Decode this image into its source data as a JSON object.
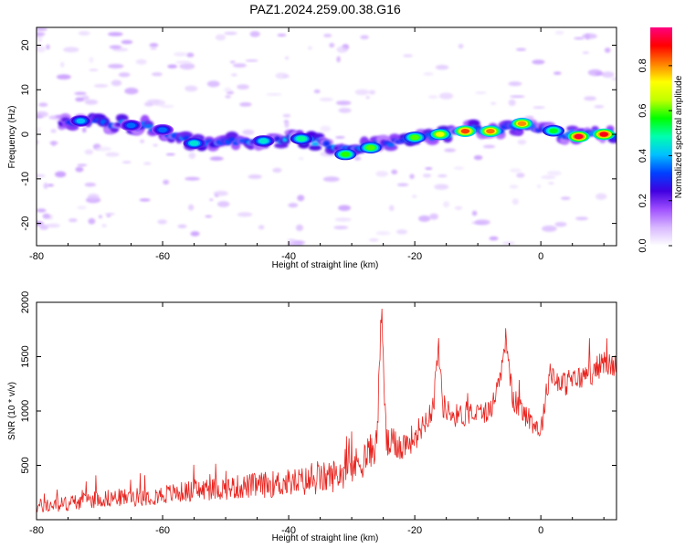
{
  "title": "PAZ1.2024.259.00.38.G16",
  "chart_data": [
    {
      "type": "heatmap",
      "xlabel": "Height of straight line (km)",
      "ylabel": "Frequency (Hz)",
      "xlim": [
        -80,
        12
      ],
      "ylim": [
        -25,
        24
      ],
      "xticks": [
        -80,
        -60,
        -40,
        -20,
        0
      ],
      "yticks": [
        20,
        10,
        0,
        -10,
        -20
      ],
      "colorbar": {
        "label": "Normalized spectral amplitude",
        "range": [
          0,
          0.97
        ],
        "ticks": [
          "0.0",
          "0.2",
          "0.4",
          "0.6",
          "0.8"
        ],
        "tick_values": [
          0,
          0.2,
          0.4,
          0.6,
          0.8
        ],
        "colormap": [
          "#ffffff",
          "#d8b8ff",
          "#a050ff",
          "#4000e0",
          "#0040ff",
          "#00c0ff",
          "#00ffb0",
          "#00ff00",
          "#c0ff00",
          "#ffff00",
          "#ff8000",
          "#ff0000",
          "#ff0080"
        ]
      },
      "ridge": {
        "x": [
          -76,
          -72,
          -68,
          -64,
          -60,
          -56,
          -52,
          -48,
          -44,
          -40,
          -36,
          -32,
          -28,
          -24,
          -20,
          -16,
          -12,
          -8,
          -4,
          0,
          4,
          8,
          12
        ],
        "y": [
          3,
          3,
          2.5,
          2,
          1,
          -1.5,
          -2,
          -1.5,
          -1.5,
          -1,
          -1.5,
          -3,
          -3,
          -2,
          -1,
          0,
          1,
          1,
          2,
          1,
          0,
          0,
          0
        ]
      },
      "blobs": [
        {
          "x": 6,
          "y": -0.5,
          "v": 0.92
        },
        {
          "x": 10,
          "y": 0,
          "v": 0.9
        },
        {
          "x": -12,
          "y": 0.7,
          "v": 0.85
        },
        {
          "x": -8,
          "y": 0.7,
          "v": 0.82
        },
        {
          "x": -3,
          "y": 2.4,
          "v": 0.8
        },
        {
          "x": -16,
          "y": 0,
          "v": 0.7
        },
        {
          "x": -20,
          "y": -0.7,
          "v": 0.6
        },
        {
          "x": -27,
          "y": -3,
          "v": 0.6
        },
        {
          "x": -31,
          "y": -4.5,
          "v": 0.58
        },
        {
          "x": -38,
          "y": -1,
          "v": 0.5
        },
        {
          "x": -44,
          "y": -1.5,
          "v": 0.45
        },
        {
          "x": -55,
          "y": -2,
          "v": 0.45
        },
        {
          "x": -60,
          "y": 1,
          "v": 0.35
        },
        {
          "x": -65,
          "y": 2,
          "v": 0.35
        },
        {
          "x": -73,
          "y": 3,
          "v": 0.4
        },
        {
          "x": 2,
          "y": 0.8,
          "v": 0.55
        }
      ]
    },
    {
      "type": "line",
      "xlabel": "Height of straight line (km)",
      "ylabel": "SNR (10 * v/v)",
      "xlim": [
        -80,
        12
      ],
      "ylim": [
        0,
        2000
      ],
      "xticks": [
        -80,
        -60,
        -40,
        -20,
        0
      ],
      "yticks": [
        500,
        1000,
        1500,
        2000
      ],
      "color": "#e8241f",
      "envelope": {
        "x": [
          -80,
          -76,
          -72,
          -68,
          -64,
          -60,
          -56,
          -52,
          -48,
          -44,
          -40,
          -36,
          -32,
          -30,
          -28,
          -26,
          -25.3,
          -24.5,
          -22,
          -20,
          -18.5,
          -17,
          -16.3,
          -15.5,
          -14,
          -12,
          -10,
          -8,
          -6.5,
          -5.5,
          -4.5,
          -3,
          -1,
          0,
          1.5,
          2.5,
          4,
          6,
          8,
          10,
          12
        ],
        "y": [
          120,
          140,
          180,
          200,
          210,
          230,
          260,
          280,
          300,
          320,
          340,
          360,
          420,
          480,
          560,
          700,
          1940,
          700,
          680,
          760,
          900,
          1050,
          1620,
          1050,
          960,
          960,
          980,
          1000,
          1300,
          1700,
          1100,
          1000,
          880,
          820,
          1400,
          1250,
          1250,
          1300,
          1350,
          1450,
          1400
        ]
      },
      "noise_amplitude": {
        "x": [
          -80,
          -60,
          -40,
          -28,
          -20,
          -10,
          0,
          12
        ],
        "y": [
          70,
          90,
          130,
          170,
          130,
          100,
          110,
          120
        ]
      }
    }
  ]
}
